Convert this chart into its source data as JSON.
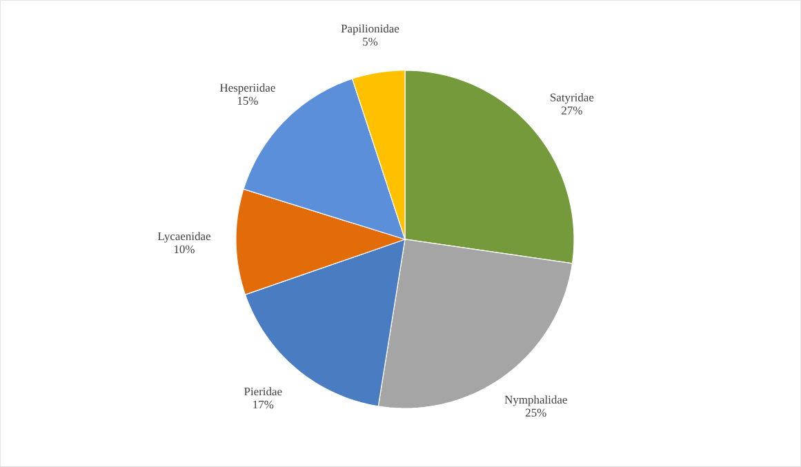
{
  "chart_data": {
    "type": "pie",
    "categories": [
      "Satyridae",
      "Nymphalidae",
      "Pieridae",
      "Lycaenidae",
      "Hesperiidae",
      "Papilionidae"
    ],
    "values": [
      27,
      25,
      17,
      10,
      15,
      5
    ],
    "colors": [
      "#759a3c",
      "#a5a5a5",
      "#4a7cc2",
      "#e26b0a",
      "#5b8fd9",
      "#ffc000"
    ],
    "value_labels": [
      "27%",
      "25%",
      "17%",
      "10%",
      "15%",
      "5%"
    ]
  }
}
